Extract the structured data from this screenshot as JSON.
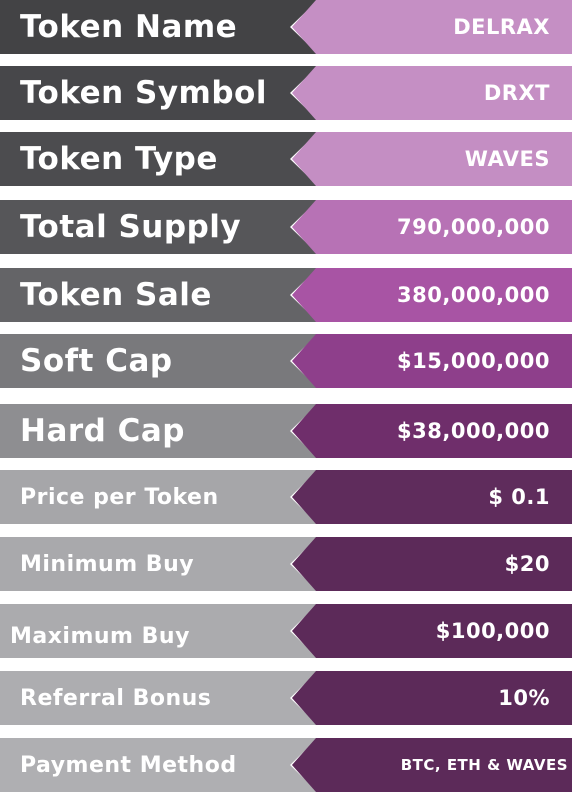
{
  "rows": [
    {
      "label": "Token Name",
      "value": "DELRAX"
    },
    {
      "label": "Token Symbol",
      "value": "DRXT"
    },
    {
      "label": "Token Type",
      "value": "WAVES"
    },
    {
      "label": "Total Supply",
      "value": "790,000,000"
    },
    {
      "label": "Token Sale",
      "value": "380,000,000"
    },
    {
      "label": "Soft Cap",
      "value": "$15,000,000"
    },
    {
      "label": "Hard Cap",
      "value": "$38,000,000"
    },
    {
      "label": "Price per Token",
      "value": "$ 0.1"
    },
    {
      "label": "Minimum Buy",
      "value": "$20"
    },
    {
      "label": "Maximum Buy",
      "value": "$100,000"
    },
    {
      "label": "Referral Bonus",
      "value": "10%"
    },
    {
      "label": "Payment Method",
      "value": "BTC, ETH & WAVES"
    }
  ],
  "colors": {
    "label_backgrounds": [
      "#434345",
      "#47474a",
      "#4c4c4f",
      "#565659",
      "#646467",
      "#79797c",
      "#8e8e91",
      "#a6a6a9",
      "#a9a9ac",
      "#ababae",
      "#adadb0",
      "#afafb2"
    ],
    "value_backgrounds": [
      "#c58fc4",
      "#c58fc4",
      "#c48ec3",
      "#b772b5",
      "#a854a4",
      "#8e3f8b",
      "#6f2e6b",
      "#5f2c5c",
      "#5c2a59",
      "#5c2a59",
      "#5c2a59",
      "#5c2a59"
    ]
  }
}
